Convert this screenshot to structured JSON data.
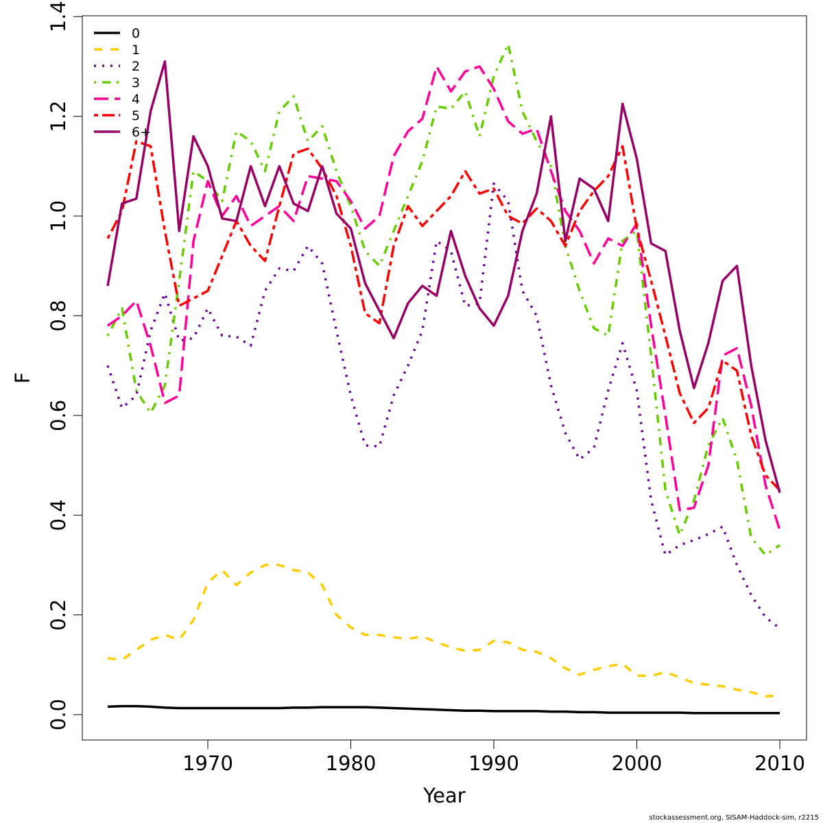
{
  "chart_data": {
    "type": "line",
    "title": "",
    "xlabel": "Year",
    "ylabel": "F",
    "xlim": [
      1961.3,
      2011.9
    ],
    "ylim": [
      -0.05,
      1.4
    ],
    "xticks": [
      1970,
      1980,
      1990,
      2000,
      2010
    ],
    "yticks": [
      0.0,
      0.2,
      0.4,
      0.6,
      0.8,
      1.0,
      1.2,
      1.4
    ],
    "ytick_labels": [
      "0.0",
      "0.2",
      "0.4",
      "0.6",
      "0.8",
      "1.0",
      "1.2",
      "1.4"
    ],
    "grid": false,
    "legend_position": "top-left",
    "x": [
      1963,
      1964,
      1965,
      1966,
      1967,
      1968,
      1969,
      1970,
      1971,
      1972,
      1973,
      1974,
      1975,
      1976,
      1977,
      1978,
      1979,
      1980,
      1981,
      1982,
      1983,
      1984,
      1985,
      1986,
      1987,
      1988,
      1989,
      1990,
      1991,
      1992,
      1993,
      1994,
      1995,
      1996,
      1997,
      1998,
      1999,
      2000,
      2001,
      2002,
      2003,
      2004,
      2005,
      2006,
      2007,
      2008,
      2009,
      2010
    ],
    "series": [
      {
        "name": "0",
        "color": "#000000",
        "dash": "solid",
        "values": [
          0.016,
          0.017,
          0.017,
          0.016,
          0.014,
          0.013,
          0.013,
          0.013,
          0.013,
          0.013,
          0.013,
          0.013,
          0.013,
          0.014,
          0.014,
          0.015,
          0.015,
          0.015,
          0.015,
          0.014,
          0.013,
          0.012,
          0.011,
          0.01,
          0.009,
          0.008,
          0.008,
          0.007,
          0.007,
          0.007,
          0.007,
          0.006,
          0.006,
          0.005,
          0.005,
          0.004,
          0.004,
          0.004,
          0.004,
          0.004,
          0.004,
          0.003,
          0.003,
          0.003,
          0.003,
          0.003,
          0.003,
          0.003
        ]
      },
      {
        "name": "1",
        "color": "#FFCC00",
        "dash": "dashed",
        "values": [
          0.113,
          0.11,
          0.13,
          0.15,
          0.16,
          0.15,
          0.19,
          0.265,
          0.29,
          0.26,
          0.285,
          0.3,
          0.3,
          0.29,
          0.285,
          0.26,
          0.2,
          0.175,
          0.16,
          0.16,
          0.155,
          0.152,
          0.157,
          0.145,
          0.135,
          0.128,
          0.13,
          0.148,
          0.145,
          0.13,
          0.126,
          0.113,
          0.093,
          0.08,
          0.09,
          0.097,
          0.102,
          0.078,
          0.078,
          0.085,
          0.075,
          0.063,
          0.06,
          0.057,
          0.05,
          0.045,
          0.037,
          0.038
        ]
      },
      {
        "name": "2",
        "color": "#660099",
        "dash": "dotted",
        "values": [
          0.7,
          0.615,
          0.64,
          0.77,
          0.845,
          0.75,
          0.755,
          0.815,
          0.76,
          0.758,
          0.74,
          0.85,
          0.895,
          0.89,
          0.94,
          0.905,
          0.77,
          0.64,
          0.54,
          0.538,
          0.64,
          0.7,
          0.77,
          0.95,
          0.93,
          0.82,
          0.825,
          1.065,
          1.03,
          0.85,
          0.8,
          0.66,
          0.565,
          0.512,
          0.535,
          0.65,
          0.745,
          0.65,
          0.43,
          0.32,
          0.34,
          0.35,
          0.362,
          0.377,
          0.3,
          0.24,
          0.195,
          0.173
        ]
      },
      {
        "name": "3",
        "color": "#66CC00",
        "dash": "dotdash",
        "values": [
          0.76,
          0.815,
          0.65,
          0.605,
          0.66,
          0.87,
          1.09,
          1.07,
          1.03,
          1.17,
          1.15,
          1.09,
          1.21,
          1.24,
          1.15,
          1.18,
          1.09,
          1.02,
          0.93,
          0.9,
          0.97,
          1.04,
          1.11,
          1.22,
          1.215,
          1.25,
          1.16,
          1.28,
          1.345,
          1.21,
          1.15,
          1.1,
          0.94,
          0.85,
          0.775,
          0.76,
          0.95,
          0.97,
          0.72,
          0.45,
          0.36,
          0.43,
          0.54,
          0.595,
          0.51,
          0.355,
          0.32,
          0.34
        ]
      },
      {
        "name": "4",
        "color": "#FF0099",
        "dash": "longdash",
        "values": [
          0.78,
          0.8,
          0.83,
          0.74,
          0.625,
          0.64,
          0.95,
          1.07,
          1.0,
          1.04,
          0.98,
          1.0,
          1.02,
          0.99,
          1.08,
          1.075,
          1.07,
          1.03,
          0.975,
          1.0,
          1.12,
          1.17,
          1.195,
          1.3,
          1.25,
          1.29,
          1.3,
          1.255,
          1.19,
          1.165,
          1.175,
          1.09,
          1.01,
          0.97,
          0.905,
          0.955,
          0.94,
          0.985,
          0.78,
          0.6,
          0.41,
          0.415,
          0.5,
          0.72,
          0.735,
          0.62,
          0.46,
          0.37
        ]
      },
      {
        "name": "5",
        "color": "#FF0000",
        "dash": "twodash",
        "values": [
          0.955,
          1.01,
          1.15,
          1.14,
          0.97,
          0.82,
          0.835,
          0.85,
          0.92,
          0.99,
          0.94,
          0.91,
          1.02,
          1.125,
          1.135,
          1.095,
          1.04,
          0.94,
          0.805,
          0.785,
          0.94,
          1.02,
          0.98,
          1.01,
          1.04,
          1.09,
          1.045,
          1.055,
          1.0,
          0.985,
          1.015,
          0.99,
          0.94,
          1.01,
          1.05,
          1.08,
          1.14,
          0.975,
          0.87,
          0.76,
          0.645,
          0.585,
          0.615,
          0.71,
          0.69,
          0.56,
          0.48,
          0.45
        ]
      },
      {
        "name": "6+",
        "color": "#990066",
        "dash": "solid",
        "values": [
          0.86,
          1.025,
          1.035,
          1.21,
          1.31,
          0.97,
          1.16,
          1.1,
          0.995,
          0.99,
          1.1,
          1.02,
          1.1,
          1.025,
          1.01,
          1.1,
          1.005,
          0.975,
          0.865,
          0.81,
          0.755,
          0.825,
          0.86,
          0.84,
          0.97,
          0.88,
          0.815,
          0.78,
          0.84,
          0.97,
          1.045,
          1.2,
          0.95,
          1.075,
          1.055,
          0.99,
          1.225,
          1.115,
          0.945,
          0.93,
          0.77,
          0.655,
          0.745,
          0.87,
          0.9,
          0.7,
          0.55,
          0.445
        ]
      }
    ]
  },
  "footer": "stockassessment.org, SISAM-Haddock-sim, r2215"
}
